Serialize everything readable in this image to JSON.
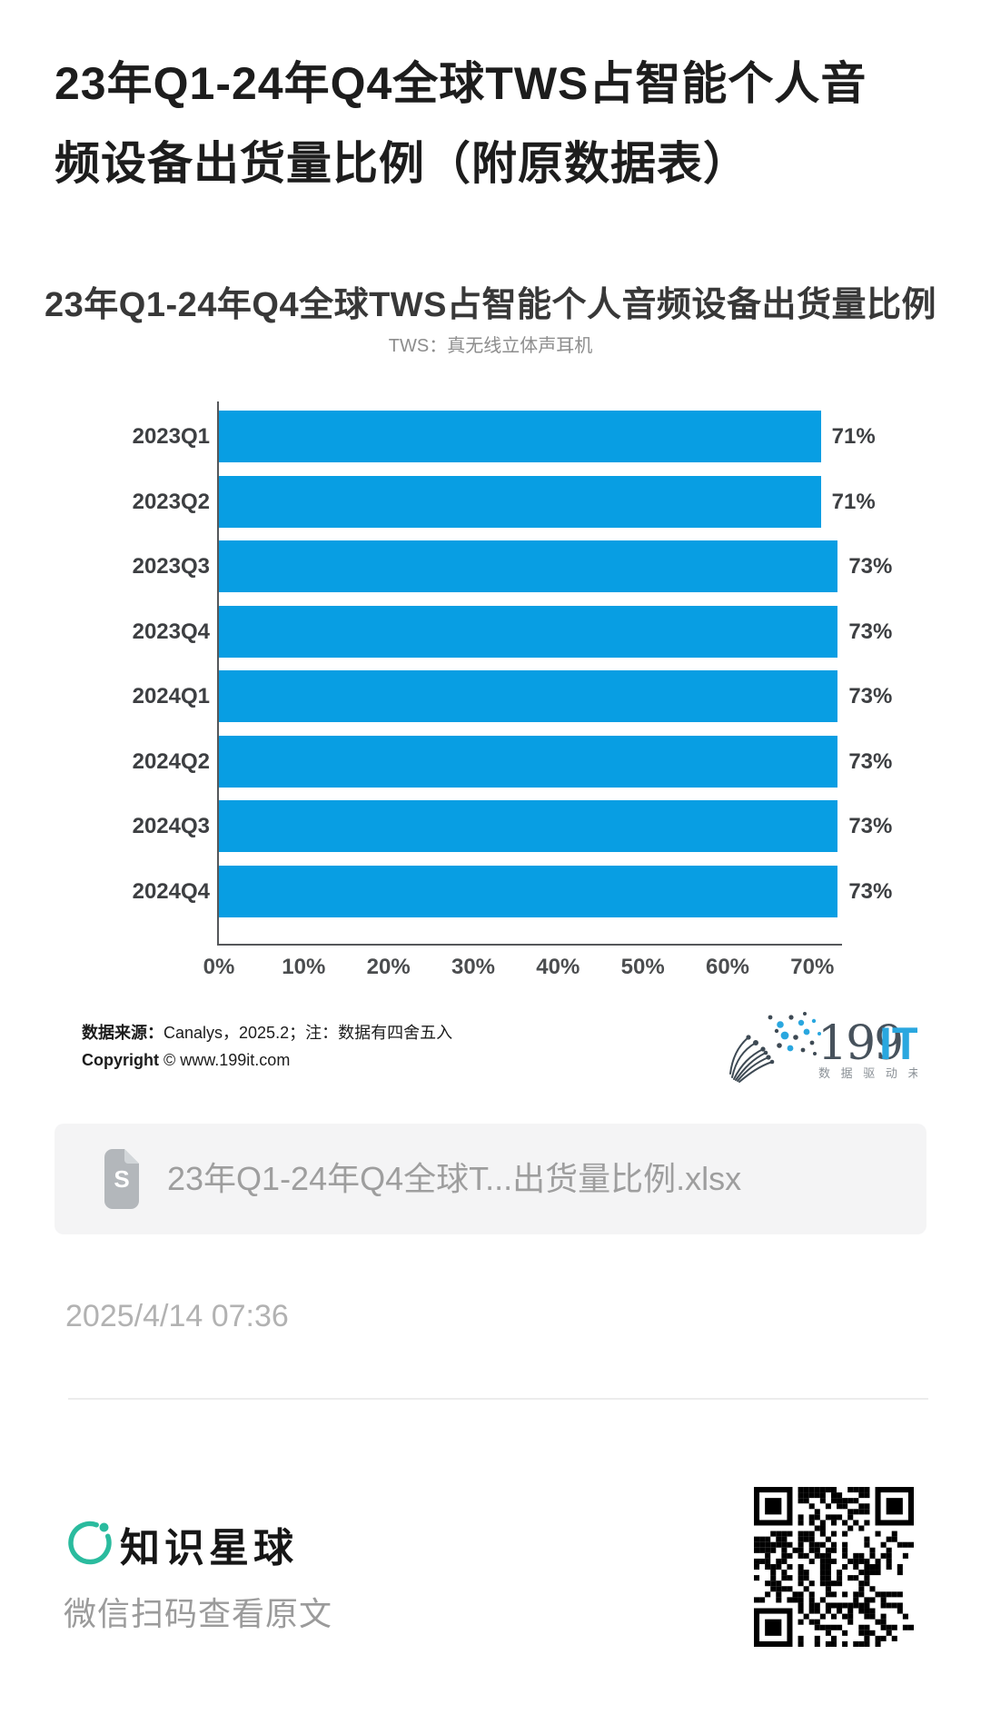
{
  "page": {
    "title": "23年Q1-24年Q4全球TWS占智能个人音频设备出货量比例（附原数据表）",
    "date": "2025/4/14 07:36"
  },
  "chart_data": {
    "type": "bar",
    "orientation": "horizontal",
    "title": "23年Q1-24年Q4全球TWS占智能个人音频设备出货量比例",
    "subtitle": "TWS：真无线立体声耳机",
    "categories": [
      "2023Q1",
      "2023Q2",
      "2023Q3",
      "2023Q4",
      "2024Q1",
      "2024Q2",
      "2024Q3",
      "2024Q4"
    ],
    "values": [
      71,
      71,
      73,
      73,
      73,
      73,
      73,
      73
    ],
    "value_labels": [
      "71%",
      "71%",
      "73%",
      "73%",
      "73%",
      "73%",
      "73%",
      "73%"
    ],
    "x_ticks": [
      "0%",
      "10%",
      "20%",
      "30%",
      "40%",
      "50%",
      "60%",
      "70%"
    ],
    "x_tick_values": [
      0,
      10,
      20,
      30,
      40,
      50,
      60,
      70
    ],
    "xlim": [
      0,
      73.5
    ],
    "bar_color": "#089ee3",
    "grid": false,
    "legend": null
  },
  "chart_footer": {
    "source_label": "数据来源：",
    "source_text": "Canalys，2025.2；注：数据有四舍五入",
    "copyright_label": "Copyright",
    "copyright_text": " © www.199it.com"
  },
  "logo_199it": {
    "text_dark": "199",
    "text_blue": "IT",
    "tagline": "数 据 驱 动 未 来",
    "dark_color": "#47525c",
    "blue_color": "#2aa7df"
  },
  "attachment": {
    "filename": "23年Q1-24年Q4全球T...出货量比例.xlsx",
    "icon": "spreadsheet-file-icon",
    "icon_letter": "S"
  },
  "footer": {
    "brand": "知识星球",
    "tagline": "微信扫码查看原文",
    "brand_color": "#2abb9e",
    "qr": "qr-code"
  }
}
